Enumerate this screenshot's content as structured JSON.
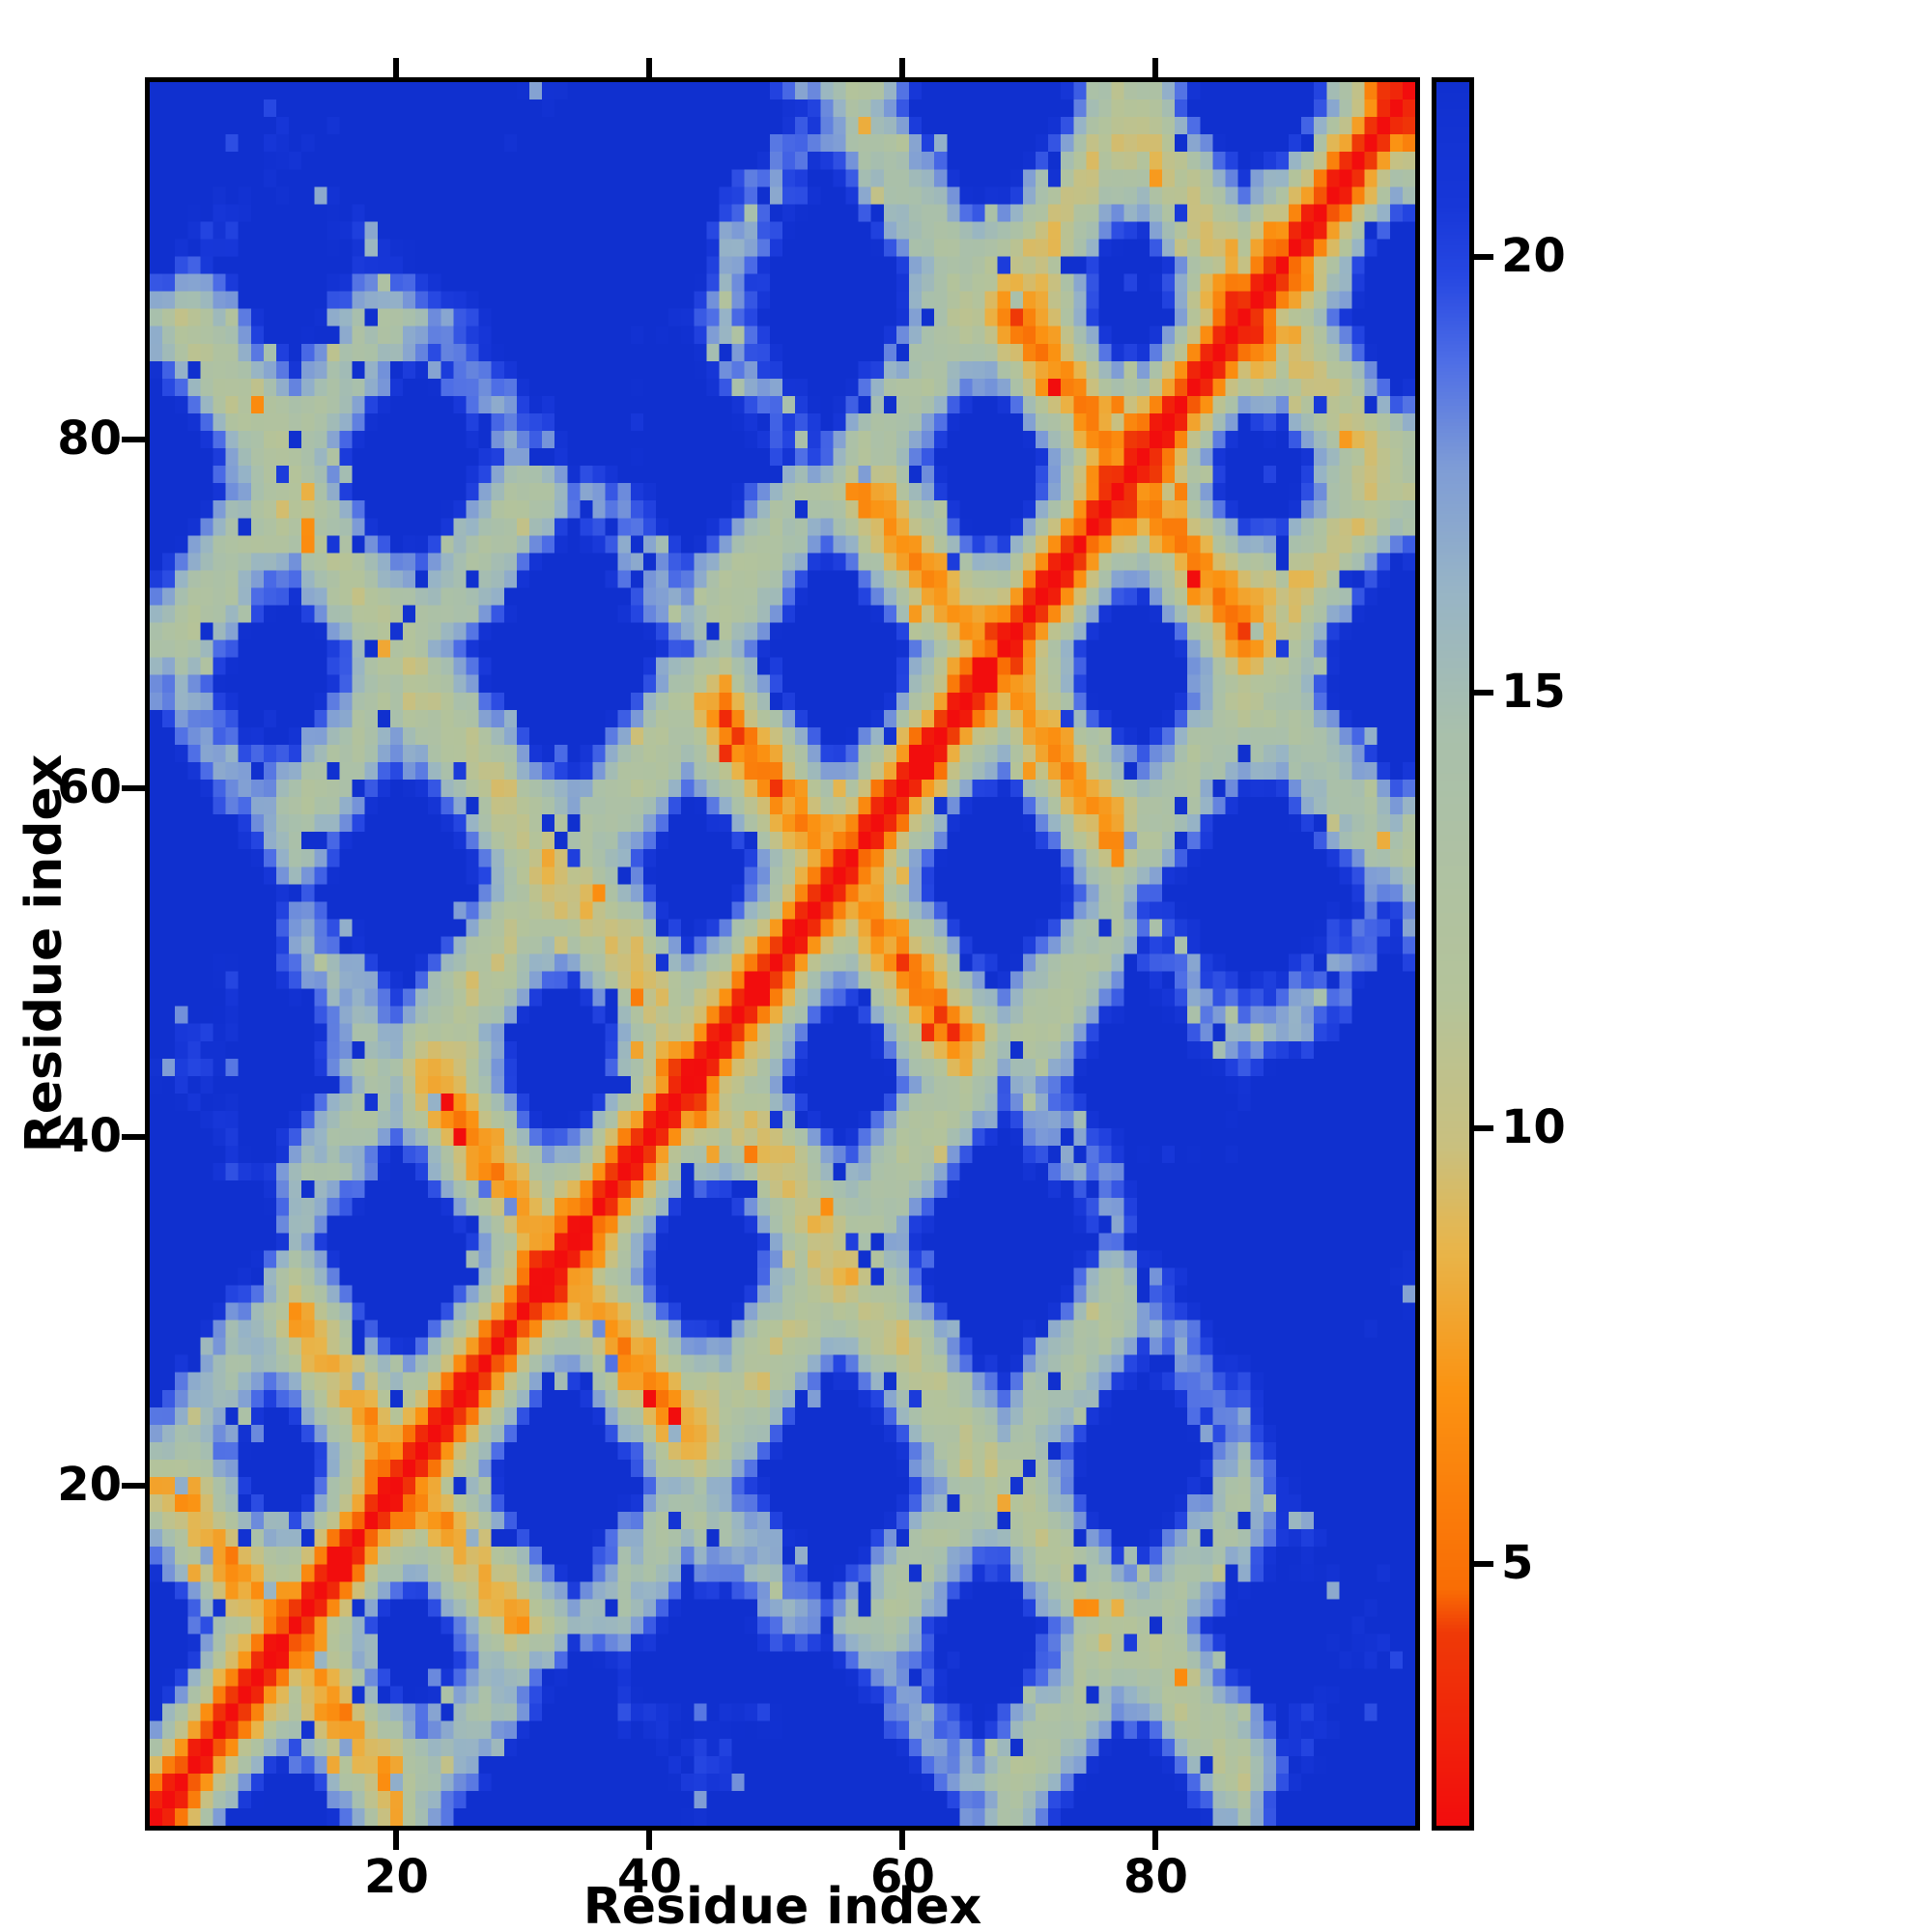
{
  "chart_data": {
    "type": "heatmap",
    "title": "",
    "xlabel": "Residue index",
    "ylabel": "Residue index",
    "n_residues": 100,
    "xlim": [
      1,
      100
    ],
    "ylim": [
      1,
      100
    ],
    "x_ticks": [
      20,
      40,
      60,
      80
    ],
    "y_ticks": [
      20,
      40,
      60,
      80
    ],
    "grid": false,
    "colorbar": {
      "position": "right",
      "ticks": [
        5,
        10,
        15,
        20
      ],
      "vmin": 2,
      "vmax": 22
    },
    "colors": {
      "near_diagonal": "#f20d0d",
      "close_contact": "#fb9312",
      "mid_range": "#b4c39a",
      "far_range": "#97b4c6",
      "background_far": "#1030cf",
      "axis": "#000000"
    },
    "colormap_stops": [
      [
        2.0,
        "#f20d0d"
      ],
      [
        4.2,
        "#ef3a07"
      ],
      [
        4.7,
        "#f96d05"
      ],
      [
        7.0,
        "#fb9312"
      ],
      [
        8.6,
        "#e8b54a"
      ],
      [
        9.8,
        "#c9c07f"
      ],
      [
        11.5,
        "#b4c39a"
      ],
      [
        14.5,
        "#a9c0ab"
      ],
      [
        16.2,
        "#97b4c6"
      ],
      [
        17.6,
        "#7e9cd6"
      ],
      [
        18.8,
        "#4e6ee6"
      ],
      [
        19.8,
        "#2647e2"
      ],
      [
        20.6,
        "#1737d8"
      ],
      [
        22.0,
        "#1030cf"
      ]
    ],
    "matrix_model": {
      "description": "Symmetric residue-residue distance matrix (Angstrom-like) approximating the depicted contact map; generated from a folded 3-layer beta-meander chain model.",
      "step": 3.3,
      "jitter": 0.8,
      "pair_noise": 1.0,
      "speckle_high_p": 0.04,
      "speckle_high_add": 9.0,
      "speckle_low_p": 0.02,
      "speckle_low_add": -4.5,
      "segments": [
        [
          9,
          [
            1,
            0,
            0
          ]
        ],
        [
          2,
          [
            0.15,
            1,
            0
          ]
        ],
        [
          8,
          [
            -1,
            0.05,
            0
          ]
        ],
        [
          2,
          [
            0.15,
            1,
            0
          ]
        ],
        [
          10,
          [
            1,
            0,
            0.05
          ]
        ],
        [
          2,
          [
            0,
            1,
            0
          ]
        ],
        [
          9,
          [
            -1,
            0,
            0
          ]
        ],
        [
          3,
          [
            0.25,
            -0.3,
            1
          ]
        ],
        [
          8,
          [
            1,
            0.05,
            0
          ]
        ],
        [
          2,
          [
            0,
            -1,
            0.05
          ]
        ],
        [
          10,
          [
            -1,
            0,
            0
          ]
        ],
        [
          2,
          [
            -0.1,
            -1,
            0
          ]
        ],
        [
          9,
          [
            1,
            0,
            0
          ]
        ],
        [
          2,
          [
            0,
            -1,
            0.05
          ]
        ],
        [
          8,
          [
            -1,
            0.05,
            0
          ]
        ],
        [
          3,
          [
            0.25,
            0.3,
            1
          ]
        ],
        [
          9,
          [
            1,
            0,
            0
          ]
        ],
        [
          2,
          [
            0,
            1,
            0
          ]
        ]
      ]
    }
  }
}
